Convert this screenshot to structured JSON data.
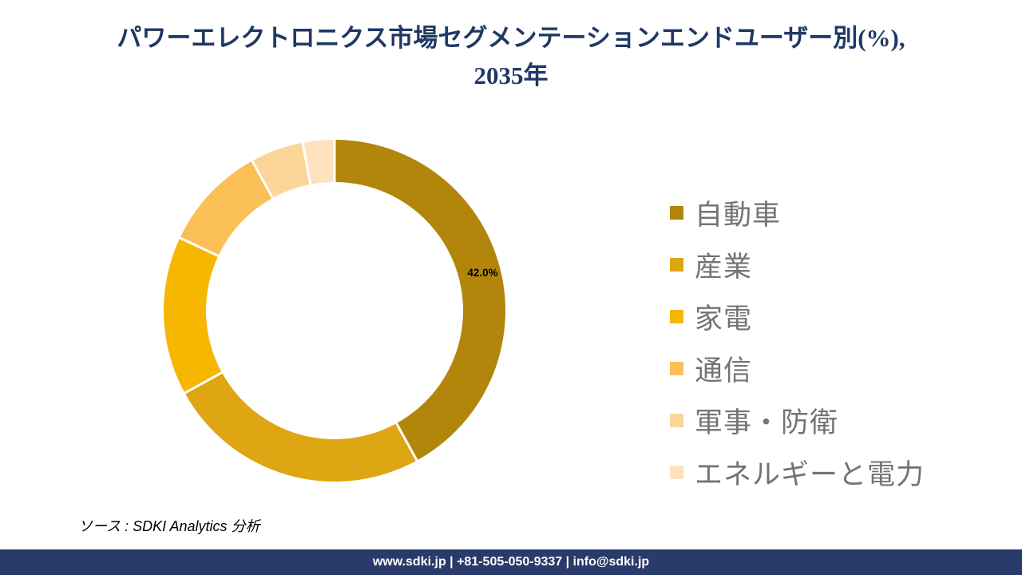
{
  "header": {
    "line1": "パワーエレクトロニクス市場セグメンテーションエンドユーザー別(%),",
    "line2": "2035年",
    "color": "#1F3864"
  },
  "chart_data": {
    "type": "pie",
    "variant": "donut",
    "title": "パワーエレクトロニクス市場セグメンテーションエンドユーザー別(%), 2035年",
    "unit": "%",
    "start_angle_deg": 0,
    "direction": "clockwise",
    "inner_radius_ratio": 0.75,
    "legend_position": "right",
    "separator_color": "#FFFFFF",
    "data_label_color": "#000000",
    "segments": [
      {
        "label": "自動車",
        "value": 42.0,
        "color": "#B1860B",
        "data_label": "42.0%"
      },
      {
        "label": "産業",
        "value": 25.0,
        "color": "#DDA612",
        "data_label": ""
      },
      {
        "label": "家電",
        "value": 15.0,
        "color": "#F7B700",
        "data_label": ""
      },
      {
        "label": "通信",
        "value": 10.0,
        "color": "#FBBF57",
        "data_label": ""
      },
      {
        "label": "軍事・防衛",
        "value": 5.0,
        "color": "#FCD698",
        "data_label": ""
      },
      {
        "label": "エネルギーと電力",
        "value": 3.0,
        "color": "#FEE2BE",
        "data_label": ""
      }
    ]
  },
  "source": {
    "text": "ソース : SDKI Analytics 分析"
  },
  "footer": {
    "text": "www.sdki.jp | +81-505-050-9337 | info@sdki.jp",
    "background": "#2A3A6B"
  }
}
